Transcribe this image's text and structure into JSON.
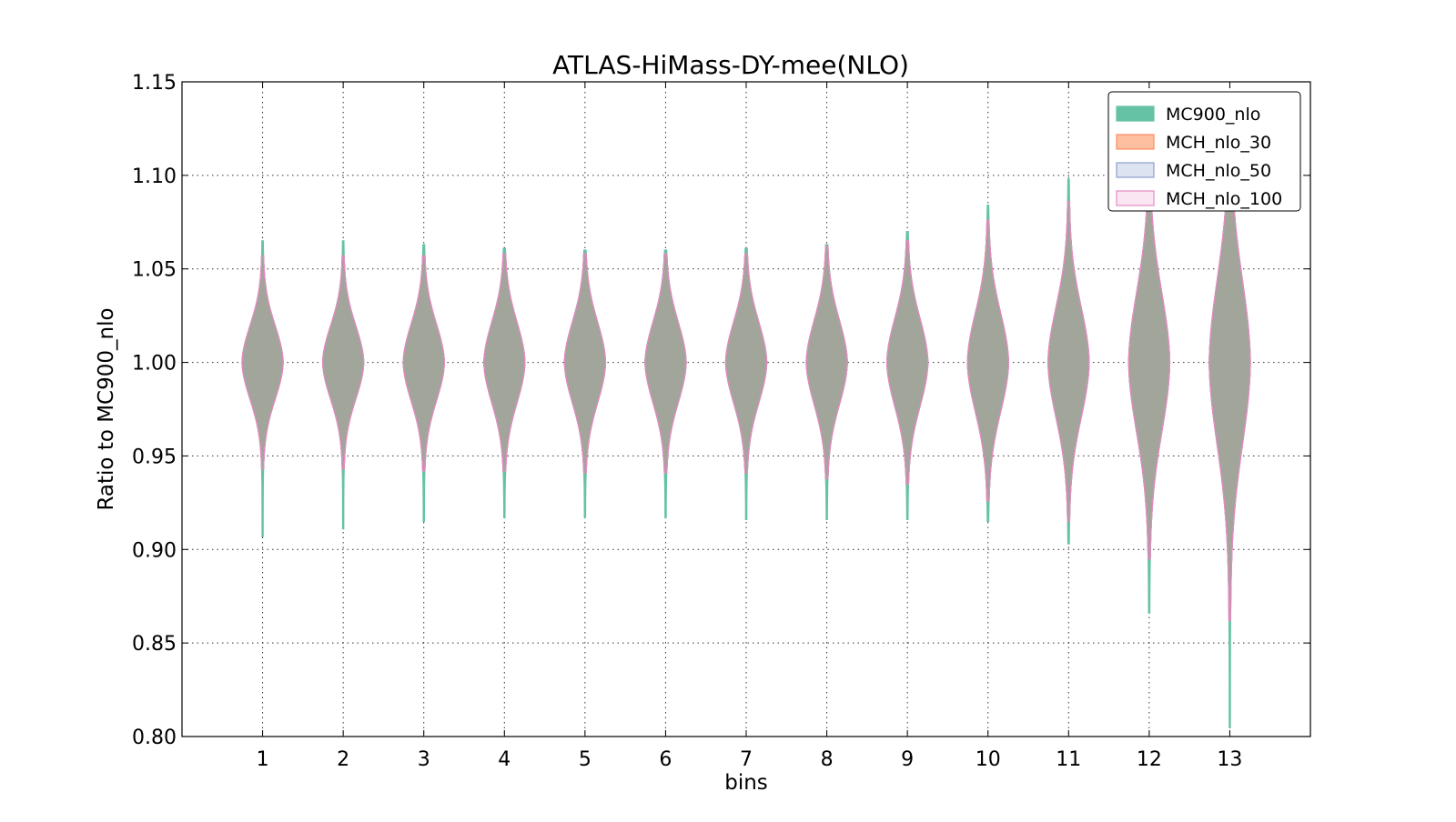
{
  "chart_data": {
    "type": "violin",
    "title": "ATLAS-HiMass-DY-mee(NLO)",
    "xlabel": "bins",
    "ylabel": "Ratio to MC900_nlo",
    "xlim": [
      0,
      14
    ],
    "ylim": [
      0.8,
      1.15
    ],
    "x_ticks": [
      1,
      2,
      3,
      4,
      5,
      6,
      7,
      8,
      9,
      10,
      11,
      12,
      13
    ],
    "y_ticks": [
      "0.80",
      "0.85",
      "0.90",
      "0.95",
      "1.00",
      "1.05",
      "1.10",
      "1.15"
    ],
    "grid": true,
    "legend_position": "top-right",
    "bins": [
      1,
      2,
      3,
      4,
      5,
      6,
      7,
      8,
      9,
      10,
      11,
      12,
      13
    ],
    "series": [
      {
        "name": "MC900_nlo",
        "color": "#66c2a5",
        "min": [
          0.907,
          0.911,
          0.915,
          0.917,
          0.917,
          0.917,
          0.916,
          0.916,
          0.916,
          0.915,
          0.903,
          0.866,
          0.805
        ],
        "max": [
          1.065,
          1.065,
          1.063,
          1.061,
          1.06,
          1.06,
          1.061,
          1.063,
          1.07,
          1.084,
          1.098,
          1.115,
          1.13
        ],
        "spread": [
          0.02,
          0.02,
          0.021,
          0.022,
          0.022,
          0.022,
          0.022,
          0.023,
          0.024,
          0.027,
          0.03,
          0.038,
          0.045
        ]
      },
      {
        "name": "MCH_nlo_30",
        "color": "#fc8d62",
        "min": [
          0.943,
          0.943,
          0.942,
          0.942,
          0.941,
          0.941,
          0.941,
          0.938,
          0.935,
          0.926,
          0.915,
          0.895,
          0.862
        ],
        "max": [
          1.057,
          1.057,
          1.057,
          1.058,
          1.058,
          1.058,
          1.058,
          1.062,
          1.065,
          1.076,
          1.086,
          1.11,
          1.128
        ],
        "spread": [
          0.02,
          0.02,
          0.021,
          0.022,
          0.022,
          0.022,
          0.022,
          0.023,
          0.024,
          0.027,
          0.03,
          0.038,
          0.045
        ]
      },
      {
        "name": "MCH_nlo_50",
        "color": "#8da0cb",
        "min": [
          0.943,
          0.943,
          0.942,
          0.942,
          0.941,
          0.941,
          0.941,
          0.938,
          0.935,
          0.926,
          0.915,
          0.895,
          0.862
        ],
        "max": [
          1.057,
          1.057,
          1.057,
          1.058,
          1.058,
          1.058,
          1.058,
          1.062,
          1.065,
          1.076,
          1.086,
          1.11,
          1.128
        ],
        "spread": [
          0.02,
          0.02,
          0.021,
          0.022,
          0.022,
          0.022,
          0.022,
          0.023,
          0.024,
          0.027,
          0.03,
          0.038,
          0.045
        ]
      },
      {
        "name": "MCH_nlo_100",
        "color": "#e78ac3",
        "min": [
          0.943,
          0.943,
          0.942,
          0.942,
          0.941,
          0.941,
          0.941,
          0.938,
          0.935,
          0.926,
          0.915,
          0.895,
          0.862
        ],
        "max": [
          1.057,
          1.057,
          1.057,
          1.058,
          1.058,
          1.058,
          1.058,
          1.062,
          1.065,
          1.076,
          1.086,
          1.11,
          1.128
        ],
        "spread": [
          0.02,
          0.02,
          0.021,
          0.022,
          0.022,
          0.022,
          0.022,
          0.023,
          0.024,
          0.027,
          0.03,
          0.038,
          0.045
        ]
      }
    ],
    "fill_colors": {
      "MC900_nlo": "#66c2a5",
      "MCH_nlo_30": "#fdbf9f",
      "MCH_nlo_50": "#dde3f0",
      "MCH_nlo_100": "#fae6f3",
      "overlap": "#ae9f98"
    }
  }
}
